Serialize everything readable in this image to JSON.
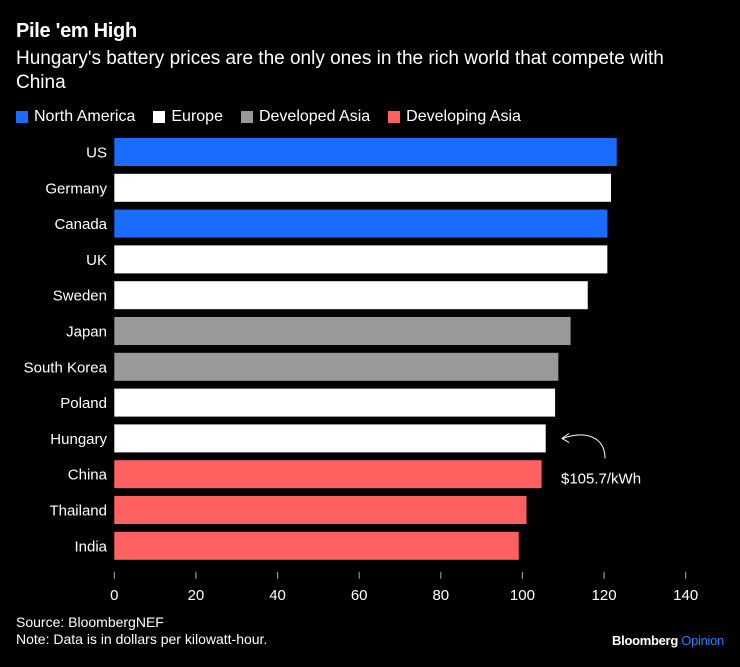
{
  "header": {
    "title": "Pile 'em High",
    "subtitle": "Hungary's battery prices are the only ones in the rich world that compete with China"
  },
  "legend": [
    {
      "label": "North America",
      "color": "#1a6cff"
    },
    {
      "label": "Europe",
      "color": "#ffffff"
    },
    {
      "label": "Developed Asia",
      "color": "#999999"
    },
    {
      "label": "Developing Asia",
      "color": "#ff6161"
    }
  ],
  "chart_data": {
    "type": "bar",
    "orientation": "horizontal",
    "categories": [
      "US",
      "Germany",
      "Canada",
      "UK",
      "Sweden",
      "Japan",
      "South Korea",
      "Poland",
      "Hungary",
      "China",
      "Thailand",
      "India"
    ],
    "values": [
      123.1,
      121.7,
      120.8,
      120.8,
      116.0,
      111.8,
      108.8,
      108.0,
      105.7,
      104.7,
      101.0,
      99.1
    ],
    "groups": [
      "North America",
      "Europe",
      "North America",
      "Europe",
      "Europe",
      "Developed Asia",
      "Developed Asia",
      "Europe",
      "Europe",
      "Developing Asia",
      "Developing Asia",
      "Developing Asia"
    ],
    "xlim": [
      0,
      140
    ],
    "xticks": [
      0,
      20,
      40,
      60,
      80,
      100,
      120,
      140
    ],
    "grid": false,
    "legend_position": "top-left",
    "annotation": {
      "category": "Hungary",
      "text": "$105.7/kWh"
    }
  },
  "footer": {
    "source": "Source: BloombergNEF",
    "note": "Note: Data is in dollars per kilowatt-hour.",
    "brand": "Bloomberg",
    "brand_accent": "Opinion"
  }
}
